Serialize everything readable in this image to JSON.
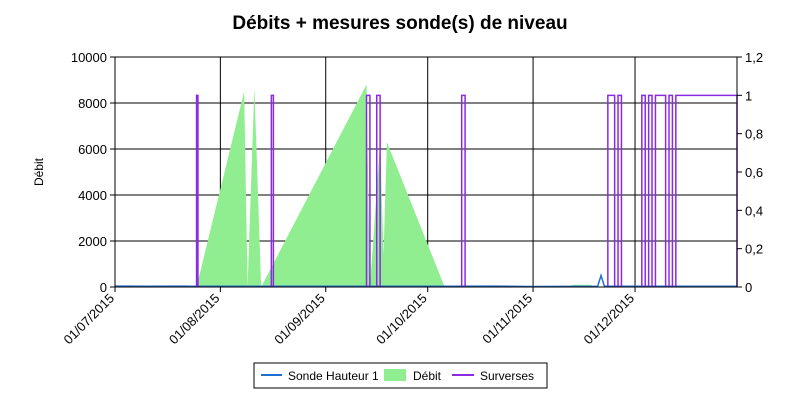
{
  "chart_data": {
    "type": "area",
    "title": "Débits + mesures sonde(s) de niveau",
    "ylabel": "Débit",
    "y_left": {
      "lim": [
        0,
        10000
      ],
      "ticks": [
        "0",
        "2000",
        "4000",
        "6000",
        "8000",
        "10000"
      ]
    },
    "y_right": {
      "lim": [
        0,
        1.2
      ],
      "ticks": [
        "0",
        "0,2",
        "0,4",
        "0,6",
        "0,8",
        "1",
        "1,2"
      ]
    },
    "x_axis": {
      "range": [
        "2015-07-01",
        "2015-12-31"
      ],
      "ticks": [
        {
          "date": "2015-07-01",
          "label": "01/07/2015"
        },
        {
          "date": "2015-08-01",
          "label": "01/08/2015"
        },
        {
          "date": "2015-09-01",
          "label": "01/09/2015"
        },
        {
          "date": "2015-10-01",
          "label": "01/10/2015"
        },
        {
          "date": "2015-11-01",
          "label": "01/11/2015"
        },
        {
          "date": "2015-12-01",
          "label": "01/12/2015"
        }
      ]
    },
    "grid": true,
    "legend_position": "bottom",
    "series": [
      {
        "name": "Sonde Hauteur 1",
        "type": "line",
        "axis": "left",
        "color": "#1f6fd1",
        "points": [
          [
            "2015-07-01",
            40
          ],
          [
            "2015-07-10",
            30
          ],
          [
            "2015-07-20",
            40
          ],
          [
            "2015-07-24",
            30
          ],
          [
            "2015-10-07",
            30
          ],
          [
            "2015-10-20",
            40
          ],
          [
            "2015-11-01",
            20
          ],
          [
            "2015-11-20",
            30
          ],
          [
            "2015-11-21",
            500
          ],
          [
            "2015-11-22",
            30
          ],
          [
            "2015-12-31",
            30
          ]
        ]
      },
      {
        "name": "Débit",
        "type": "area",
        "axis": "left",
        "color": "#90ee90",
        "points": [
          [
            "2015-07-01",
            0
          ],
          [
            "2015-07-25",
            0
          ],
          [
            "2015-08-08",
            8500
          ],
          [
            "2015-08-09",
            0
          ],
          [
            "2015-08-11",
            8700
          ],
          [
            "2015-08-13",
            0
          ],
          [
            "2015-09-13",
            8800
          ],
          [
            "2015-09-14",
            0
          ],
          [
            "2015-09-17",
            6300
          ],
          [
            "2015-09-18",
            1400
          ],
          [
            "2015-09-19",
            6300
          ],
          [
            "2015-10-06",
            0
          ],
          [
            "2015-11-10",
            0
          ],
          [
            "2015-11-13",
            100
          ],
          [
            "2015-11-18",
            100
          ],
          [
            "2015-11-19",
            0
          ],
          [
            "2015-12-31",
            0
          ]
        ]
      },
      {
        "name": "Surverses",
        "type": "step",
        "axis": "right",
        "color": "#8a2be2",
        "intervals": [
          [
            "2015-07-25",
            "2015-07-25.4"
          ],
          [
            "2015-08-16",
            "2015-08-16.6"
          ],
          [
            "2015-09-13",
            "2015-09-14"
          ],
          [
            "2015-09-16",
            "2015-09-17"
          ],
          [
            "2015-10-11",
            "2015-10-12"
          ],
          [
            "2015-11-23",
            "2015-11-25"
          ],
          [
            "2015-11-26",
            "2015-11-27"
          ],
          [
            "2015-12-03",
            "2015-12-04"
          ],
          [
            "2015-12-05",
            "2015-12-06"
          ],
          [
            "2015-12-07",
            "2015-12-10"
          ],
          [
            "2015-12-11",
            "2015-12-12"
          ],
          [
            "2015-12-13",
            "2015-12-31"
          ]
        ]
      }
    ]
  }
}
